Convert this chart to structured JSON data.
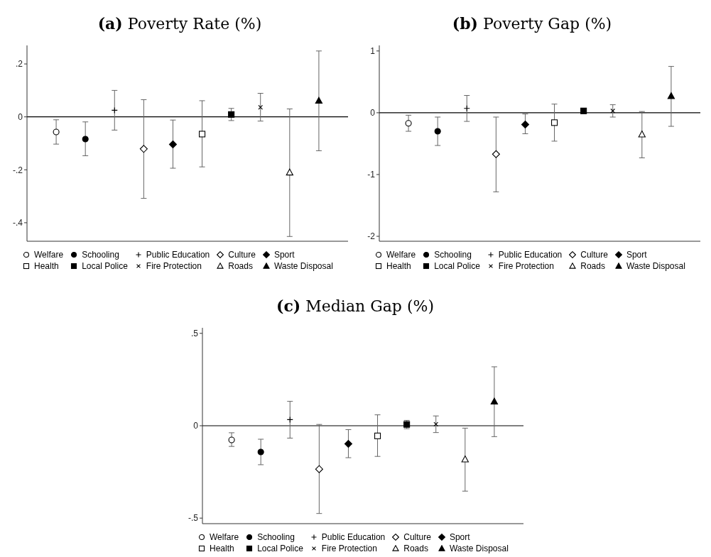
{
  "chart_data": [
    {
      "type": "scatter",
      "title": "(a) Poverty Rate (%)",
      "categories": [
        null,
        null,
        null,
        null,
        null,
        null,
        null,
        null,
        null,
        null
      ],
      "ylim": [
        -0.47,
        0.27
      ],
      "yticks": [
        {
          "value": 0.2,
          "label": ".2"
        },
        0,
        {
          "value": -0.2,
          "label": "-.2"
        },
        {
          "value": -0.4,
          "label": "-.4"
        }
      ],
      "tick_labels": "y",
      "grid": false,
      "legend": "bottom",
      "ref_lines": [
        {
          "axis": "y",
          "value": 0,
          "color": "#000000"
        }
      ],
      "series": [
        {
          "name": "Welfare",
          "color": "#ffffff",
          "marker": "circle",
          "values": [
            -0.057,
            null,
            null,
            null,
            null,
            null,
            null,
            null,
            null,
            null
          ],
          "errors": [
            [
              -0.103,
              -0.011
            ],
            null,
            null,
            null,
            null,
            null,
            null,
            null,
            null,
            null
          ]
        },
        {
          "name": "Schooling",
          "color": "#000000",
          "marker": "circle",
          "values": [
            null,
            -0.084,
            null,
            null,
            null,
            null,
            null,
            null,
            null,
            null
          ],
          "errors": [
            null,
            [
              -0.147,
              -0.019
            ],
            null,
            null,
            null,
            null,
            null,
            null,
            null,
            null
          ]
        },
        {
          "name": "Public Education",
          "color": "#000000",
          "marker": "plus",
          "values": [
            null,
            null,
            0.025,
            null,
            null,
            null,
            null,
            null,
            null,
            null
          ],
          "errors": [
            null,
            null,
            [
              -0.05,
              0.1
            ],
            null,
            null,
            null,
            null,
            null,
            null,
            null
          ]
        },
        {
          "name": "Culture",
          "color": "#ffffff",
          "marker": "diamond",
          "values": [
            null,
            null,
            null,
            -0.121,
            null,
            null,
            null,
            null,
            null,
            null
          ],
          "errors": [
            null,
            null,
            null,
            [
              -0.308,
              0.065
            ],
            null,
            null,
            null,
            null,
            null,
            null
          ]
        },
        {
          "name": "Sport",
          "color": "#000000",
          "marker": "diamond",
          "values": [
            null,
            null,
            null,
            null,
            -0.104,
            null,
            null,
            null,
            null,
            null
          ],
          "errors": [
            null,
            null,
            null,
            null,
            [
              -0.194,
              -0.012
            ],
            null,
            null,
            null,
            null,
            null
          ]
        },
        {
          "name": "Health",
          "color": "#ffffff",
          "marker": "square",
          "values": [
            null,
            null,
            null,
            null,
            null,
            -0.065,
            null,
            null,
            null,
            null
          ],
          "errors": [
            null,
            null,
            null,
            null,
            null,
            [
              -0.189,
              0.061
            ],
            null,
            null,
            null,
            null
          ]
        },
        {
          "name": "Local Police",
          "color": "#000000",
          "marker": "square",
          "values": [
            null,
            null,
            null,
            null,
            null,
            null,
            0.009,
            null,
            null,
            null
          ],
          "errors": [
            null,
            null,
            null,
            null,
            null,
            null,
            [
              -0.014,
              0.032
            ],
            null,
            null,
            null
          ]
        },
        {
          "name": "Fire Protection",
          "color": "#000000",
          "marker": "cross",
          "values": [
            null,
            null,
            null,
            null,
            null,
            null,
            null,
            0.036,
            null,
            null
          ],
          "errors": [
            null,
            null,
            null,
            null,
            null,
            null,
            null,
            [
              -0.016,
              0.089
            ],
            null,
            null
          ]
        },
        {
          "name": "Roads",
          "color": "#ffffff",
          "marker": "triangle",
          "values": [
            null,
            null,
            null,
            null,
            null,
            null,
            null,
            null,
            -0.21,
            null
          ],
          "errors": [
            null,
            null,
            null,
            null,
            null,
            null,
            null,
            null,
            [
              -0.452,
              0.03
            ],
            null
          ]
        },
        {
          "name": "Waste Disposal",
          "color": "#000000",
          "marker": "triangle",
          "values": [
            null,
            null,
            null,
            null,
            null,
            null,
            null,
            null,
            null,
            0.061
          ],
          "errors": [
            null,
            null,
            null,
            null,
            null,
            null,
            null,
            null,
            null,
            [
              -0.128,
              0.249
            ]
          ]
        }
      ]
    },
    {
      "type": "scatter",
      "title": "(b) Poverty Gap (%)",
      "categories": [
        null,
        null,
        null,
        null,
        null,
        null,
        null,
        null,
        null,
        null
      ],
      "ylim": [
        -2.08,
        1.09
      ],
      "yticks": [
        1,
        0,
        -1,
        -2
      ],
      "tick_labels": "y",
      "grid": false,
      "legend": "bottom",
      "ref_lines": [
        {
          "axis": "y",
          "value": 0,
          "color": "#000000"
        }
      ],
      "series": [
        {
          "name": "Welfare",
          "color": "#ffffff",
          "marker": "circle",
          "values": [
            -0.17,
            null,
            null,
            null,
            null,
            null,
            null,
            null,
            null,
            null
          ],
          "errors": [
            [
              -0.3,
              -0.04
            ],
            null,
            null,
            null,
            null,
            null,
            null,
            null,
            null,
            null
          ]
        },
        {
          "name": "Schooling",
          "color": "#000000",
          "marker": "circle",
          "values": [
            null,
            -0.3,
            null,
            null,
            null,
            null,
            null,
            null,
            null,
            null
          ],
          "errors": [
            null,
            [
              -0.53,
              -0.07
            ],
            null,
            null,
            null,
            null,
            null,
            null,
            null,
            null
          ]
        },
        {
          "name": "Public Education",
          "color": "#000000",
          "marker": "plus",
          "values": [
            null,
            null,
            0.07,
            null,
            null,
            null,
            null,
            null,
            null,
            null
          ],
          "errors": [
            null,
            null,
            [
              -0.14,
              0.28
            ],
            null,
            null,
            null,
            null,
            null,
            null,
            null
          ]
        },
        {
          "name": "Culture",
          "color": "#ffffff",
          "marker": "diamond",
          "values": [
            null,
            null,
            null,
            -0.67,
            null,
            null,
            null,
            null,
            null,
            null
          ],
          "errors": [
            null,
            null,
            null,
            [
              -1.28,
              -0.07
            ],
            null,
            null,
            null,
            null,
            null,
            null
          ]
        },
        {
          "name": "Sport",
          "color": "#000000",
          "marker": "diamond",
          "values": [
            null,
            null,
            null,
            null,
            -0.19,
            null,
            null,
            null,
            null,
            null
          ],
          "errors": [
            null,
            null,
            null,
            null,
            [
              -0.34,
              -0.02
            ],
            null,
            null,
            null,
            null,
            null
          ]
        },
        {
          "name": "Health",
          "color": "#ffffff",
          "marker": "square",
          "values": [
            null,
            null,
            null,
            null,
            null,
            -0.16,
            null,
            null,
            null,
            null
          ],
          "errors": [
            null,
            null,
            null,
            null,
            null,
            [
              -0.46,
              0.14
            ],
            null,
            null,
            null,
            null
          ]
        },
        {
          "name": "Local Police",
          "color": "#000000",
          "marker": "square",
          "values": [
            null,
            null,
            null,
            null,
            null,
            null,
            0.03,
            null,
            null,
            null
          ],
          "errors": [
            null,
            null,
            null,
            null,
            null,
            null,
            [
              -0.01,
              0.05
            ],
            null,
            null,
            null
          ]
        },
        {
          "name": "Fire Protection",
          "color": "#000000",
          "marker": "cross",
          "values": [
            null,
            null,
            null,
            null,
            null,
            null,
            null,
            0.03,
            null,
            null
          ],
          "errors": [
            null,
            null,
            null,
            null,
            null,
            null,
            null,
            [
              -0.07,
              0.13
            ],
            null,
            null
          ]
        },
        {
          "name": "Roads",
          "color": "#ffffff",
          "marker": "triangle",
          "values": [
            null,
            null,
            null,
            null,
            null,
            null,
            null,
            null,
            -0.35,
            null
          ],
          "errors": [
            null,
            null,
            null,
            null,
            null,
            null,
            null,
            null,
            [
              -0.73,
              0.02
            ],
            null
          ]
        },
        {
          "name": "Waste Disposal",
          "color": "#000000",
          "marker": "triangle",
          "values": [
            null,
            null,
            null,
            null,
            null,
            null,
            null,
            null,
            null,
            0.27
          ],
          "errors": [
            null,
            null,
            null,
            null,
            null,
            null,
            null,
            null,
            null,
            [
              -0.22,
              0.75
            ]
          ]
        }
      ]
    },
    {
      "type": "scatter",
      "title": "(c) Median Gap (%)",
      "categories": [
        null,
        null,
        null,
        null,
        null,
        null,
        null,
        null,
        null,
        null
      ],
      "ylim": [
        -0.53,
        0.53
      ],
      "yticks": [
        {
          "value": 0.5,
          "label": ".5"
        },
        0,
        {
          "value": -0.5,
          "label": "-.5"
        }
      ],
      "tick_labels": "y",
      "grid": false,
      "legend": "bottom",
      "ref_lines": [
        {
          "axis": "y",
          "value": 0,
          "color": "#000000"
        }
      ],
      "series": [
        {
          "name": "Welfare",
          "color": "#ffffff",
          "marker": "circle",
          "values": [
            -0.077,
            null,
            null,
            null,
            null,
            null,
            null,
            null,
            null,
            null
          ],
          "errors": [
            [
              -0.112,
              -0.038
            ],
            null,
            null,
            null,
            null,
            null,
            null,
            null,
            null,
            null
          ]
        },
        {
          "name": "Schooling",
          "color": "#000000",
          "marker": "circle",
          "values": [
            null,
            -0.142,
            null,
            null,
            null,
            null,
            null,
            null,
            null,
            null
          ],
          "errors": [
            null,
            [
              -0.211,
              -0.073
            ],
            null,
            null,
            null,
            null,
            null,
            null,
            null,
            null
          ]
        },
        {
          "name": "Public Education",
          "color": "#000000",
          "marker": "plus",
          "values": [
            null,
            null,
            0.033,
            null,
            null,
            null,
            null,
            null,
            null,
            null
          ],
          "errors": [
            null,
            null,
            [
              -0.067,
              0.132
            ],
            null,
            null,
            null,
            null,
            null,
            null,
            null
          ]
        },
        {
          "name": "Culture",
          "color": "#ffffff",
          "marker": "diamond",
          "values": [
            null,
            null,
            null,
            -0.235,
            null,
            null,
            null,
            null,
            null,
            null
          ],
          "errors": [
            null,
            null,
            null,
            [
              -0.475,
              0.007
            ],
            null,
            null,
            null,
            null,
            null,
            null
          ]
        },
        {
          "name": "Sport",
          "color": "#000000",
          "marker": "diamond",
          "values": [
            null,
            null,
            null,
            null,
            -0.098,
            null,
            null,
            null,
            null,
            null
          ],
          "errors": [
            null,
            null,
            null,
            null,
            [
              -0.173,
              -0.021
            ],
            null,
            null,
            null,
            null,
            null
          ]
        },
        {
          "name": "Health",
          "color": "#ffffff",
          "marker": "square",
          "values": [
            null,
            null,
            null,
            null,
            null,
            -0.055,
            null,
            null,
            null,
            null
          ],
          "errors": [
            null,
            null,
            null,
            null,
            null,
            [
              -0.166,
              0.059
            ],
            null,
            null,
            null,
            null
          ]
        },
        {
          "name": "Local Police",
          "color": "#000000",
          "marker": "square",
          "values": [
            null,
            null,
            null,
            null,
            null,
            null,
            0.007,
            null,
            null,
            null
          ],
          "errors": [
            null,
            null,
            null,
            null,
            null,
            null,
            [
              -0.016,
              0.029
            ],
            null,
            null,
            null
          ]
        },
        {
          "name": "Fire Protection",
          "color": "#000000",
          "marker": "cross",
          "values": [
            null,
            null,
            null,
            null,
            null,
            null,
            null,
            0.008,
            null,
            null
          ],
          "errors": [
            null,
            null,
            null,
            null,
            null,
            null,
            null,
            [
              -0.037,
              0.053
            ],
            null,
            null
          ]
        },
        {
          "name": "Roads",
          "color": "#ffffff",
          "marker": "triangle",
          "values": [
            null,
            null,
            null,
            null,
            null,
            null,
            null,
            null,
            -0.182,
            null
          ],
          "errors": [
            null,
            null,
            null,
            null,
            null,
            null,
            null,
            null,
            [
              -0.354,
              -0.013
            ],
            null
          ]
        },
        {
          "name": "Waste Disposal",
          "color": "#000000",
          "marker": "triangle",
          "values": [
            null,
            null,
            null,
            null,
            null,
            null,
            null,
            null,
            null,
            0.131
          ],
          "errors": [
            null,
            null,
            null,
            null,
            null,
            null,
            null,
            null,
            null,
            [
              -0.059,
              0.319
            ]
          ]
        }
      ]
    }
  ]
}
